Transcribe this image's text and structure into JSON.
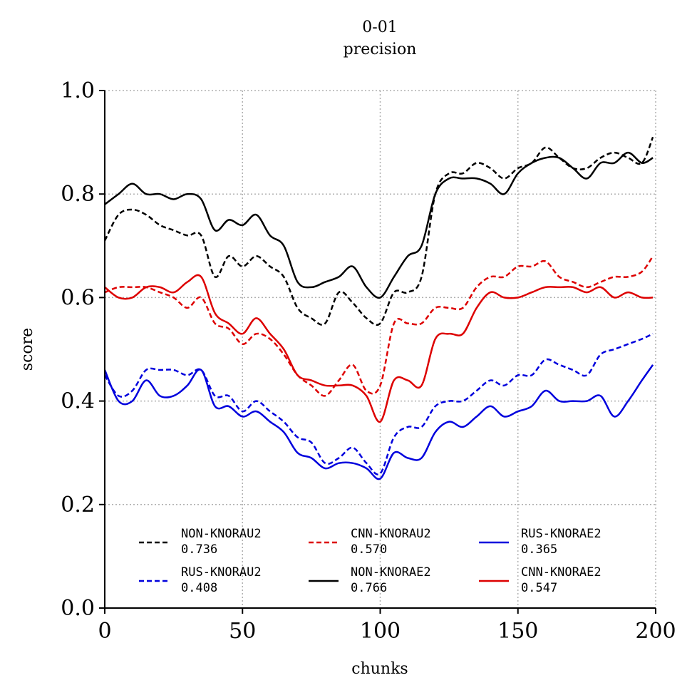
{
  "chart_data": {
    "type": "line",
    "title": "0-01",
    "subtitle": "precision",
    "xlabel": "chunks",
    "ylabel": "score",
    "xlim": [
      0,
      200
    ],
    "ylim": [
      0,
      1
    ],
    "xticks": [
      0,
      50,
      100,
      150,
      200
    ],
    "xtick_labels": [
      "0",
      "50",
      "100",
      "150",
      "200"
    ],
    "yticks": [
      0.0,
      0.2,
      0.4,
      0.6,
      0.8,
      1.0
    ],
    "ytick_labels": [
      "0.0",
      "0.2",
      "0.4",
      "0.6",
      "0.8",
      "1.0"
    ],
    "grid": true,
    "legend_position": "lower center",
    "legend_columns": 3,
    "x": [
      0,
      5,
      10,
      15,
      20,
      25,
      30,
      35,
      40,
      45,
      50,
      55,
      60,
      65,
      70,
      75,
      80,
      85,
      90,
      95,
      100,
      105,
      110,
      115,
      120,
      125,
      130,
      135,
      140,
      145,
      150,
      155,
      160,
      165,
      170,
      175,
      180,
      185,
      190,
      195,
      199
    ],
    "series": [
      {
        "name": "NON-KNORAU2",
        "score": "0.736",
        "color": "#000000",
        "dash": "dashed",
        "values": [
          0.71,
          0.76,
          0.77,
          0.76,
          0.74,
          0.73,
          0.72,
          0.72,
          0.64,
          0.68,
          0.66,
          0.68,
          0.66,
          0.64,
          0.58,
          0.56,
          0.55,
          0.61,
          0.59,
          0.56,
          0.55,
          0.61,
          0.61,
          0.64,
          0.8,
          0.84,
          0.84,
          0.86,
          0.85,
          0.83,
          0.85,
          0.86,
          0.89,
          0.87,
          0.85,
          0.85,
          0.87,
          0.88,
          0.87,
          0.86,
          0.91
        ]
      },
      {
        "name": "RUS-KNORAU2",
        "score": "0.408",
        "color": "#0000dd",
        "dash": "dashed",
        "values": [
          0.45,
          0.41,
          0.42,
          0.46,
          0.46,
          0.46,
          0.45,
          0.46,
          0.41,
          0.41,
          0.38,
          0.4,
          0.38,
          0.36,
          0.33,
          0.32,
          0.28,
          0.29,
          0.31,
          0.28,
          0.26,
          0.33,
          0.35,
          0.35,
          0.39,
          0.4,
          0.4,
          0.42,
          0.44,
          0.43,
          0.45,
          0.45,
          0.48,
          0.47,
          0.46,
          0.45,
          0.49,
          0.5,
          0.51,
          0.52,
          0.53
        ]
      },
      {
        "name": "CNN-KNORAU2",
        "score": "0.570",
        "color": "#dd0000",
        "dash": "dashed",
        "values": [
          0.61,
          0.62,
          0.62,
          0.62,
          0.61,
          0.6,
          0.58,
          0.6,
          0.55,
          0.54,
          0.51,
          0.53,
          0.52,
          0.49,
          0.45,
          0.43,
          0.41,
          0.44,
          0.47,
          0.42,
          0.43,
          0.55,
          0.55,
          0.55,
          0.58,
          0.58,
          0.58,
          0.62,
          0.64,
          0.64,
          0.66,
          0.66,
          0.67,
          0.64,
          0.63,
          0.62,
          0.63,
          0.64,
          0.64,
          0.65,
          0.68
        ]
      },
      {
        "name": "NON-KNORAE2",
        "score": "0.766",
        "color": "#000000",
        "dash": "solid",
        "values": [
          0.78,
          0.8,
          0.82,
          0.8,
          0.8,
          0.79,
          0.8,
          0.79,
          0.73,
          0.75,
          0.74,
          0.76,
          0.72,
          0.7,
          0.63,
          0.62,
          0.63,
          0.64,
          0.66,
          0.62,
          0.6,
          0.64,
          0.68,
          0.7,
          0.8,
          0.83,
          0.83,
          0.83,
          0.82,
          0.8,
          0.84,
          0.86,
          0.87,
          0.87,
          0.85,
          0.83,
          0.86,
          0.86,
          0.88,
          0.86,
          0.87
        ]
      },
      {
        "name": "RUS-KNORAE2",
        "score": "0.365",
        "color": "#0000dd",
        "dash": "solid",
        "values": [
          0.46,
          0.4,
          0.4,
          0.44,
          0.41,
          0.41,
          0.43,
          0.46,
          0.39,
          0.39,
          0.37,
          0.38,
          0.36,
          0.34,
          0.3,
          0.29,
          0.27,
          0.28,
          0.28,
          0.27,
          0.25,
          0.3,
          0.29,
          0.29,
          0.34,
          0.36,
          0.35,
          0.37,
          0.39,
          0.37,
          0.38,
          0.39,
          0.42,
          0.4,
          0.4,
          0.4,
          0.41,
          0.37,
          0.4,
          0.44,
          0.47
        ]
      },
      {
        "name": "CNN-KNORAE2",
        "score": "0.547",
        "color": "#dd0000",
        "dash": "solid",
        "values": [
          0.62,
          0.6,
          0.6,
          0.62,
          0.62,
          0.61,
          0.63,
          0.64,
          0.57,
          0.55,
          0.53,
          0.56,
          0.53,
          0.5,
          0.45,
          0.44,
          0.43,
          0.43,
          0.43,
          0.41,
          0.36,
          0.44,
          0.44,
          0.43,
          0.52,
          0.53,
          0.53,
          0.58,
          0.61,
          0.6,
          0.6,
          0.61,
          0.62,
          0.62,
          0.62,
          0.61,
          0.62,
          0.6,
          0.61,
          0.6,
          0.6
        ]
      }
    ]
  }
}
